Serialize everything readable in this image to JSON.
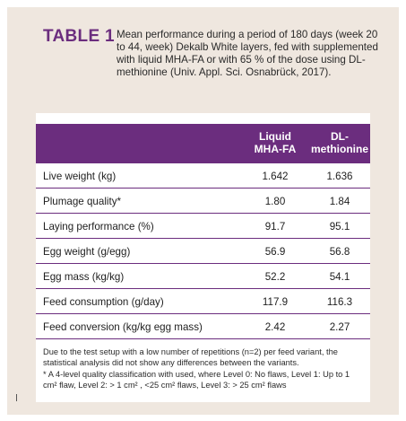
{
  "table": {
    "label": "TABLE 1",
    "caption": "Mean performance during a period of 180 days (week 20 to 44, week) Dekalb White layers, fed with supplemented with liquid MHA-FA or with 65 % of the dose using DL-methionine (Univ. Appl. Sci. Osnabrück, 2017).",
    "columns": [
      {
        "line1": "Liquid",
        "line2": "MHA-FA"
      },
      {
        "line1": "DL-",
        "line2": "methionine"
      }
    ],
    "rows": [
      {
        "label": "Live weight (kg)",
        "v1": "1.642",
        "v2": "1.636"
      },
      {
        "label": "Plumage quality*",
        "v1": "1.80",
        "v2": "1.84"
      },
      {
        "label": "Laying performance (%)",
        "v1": "91.7",
        "v2": "95.1"
      },
      {
        "label": "Egg weight (g/egg)",
        "v1": "56.9",
        "v2": "56.8"
      },
      {
        "label": "Egg mass (kg/kg)",
        "v1": "52.2",
        "v2": "54.1"
      },
      {
        "label": "Feed consumption (g/day)",
        "v1": "117.9",
        "v2": "116.3"
      },
      {
        "label": "Feed conversion (kg/kg egg mass)",
        "v1": "2.42",
        "v2": "2.27"
      }
    ],
    "note1": "Due to the test setup with a low number of repetitions (n=2) per feed variant, the statistical analysis did not show any differences between the variants.",
    "note2": "* A 4-level quality classification with used, where Level 0: No flaws, Level 1: Up to 1 cm² flaw, Level 2: > 1 cm² , <25 cm² flaws, Level 3: > 25 cm² flaws"
  },
  "colors": {
    "accent": "#6b2d7e",
    "background": "#efe7df",
    "card": "#ffffff"
  }
}
